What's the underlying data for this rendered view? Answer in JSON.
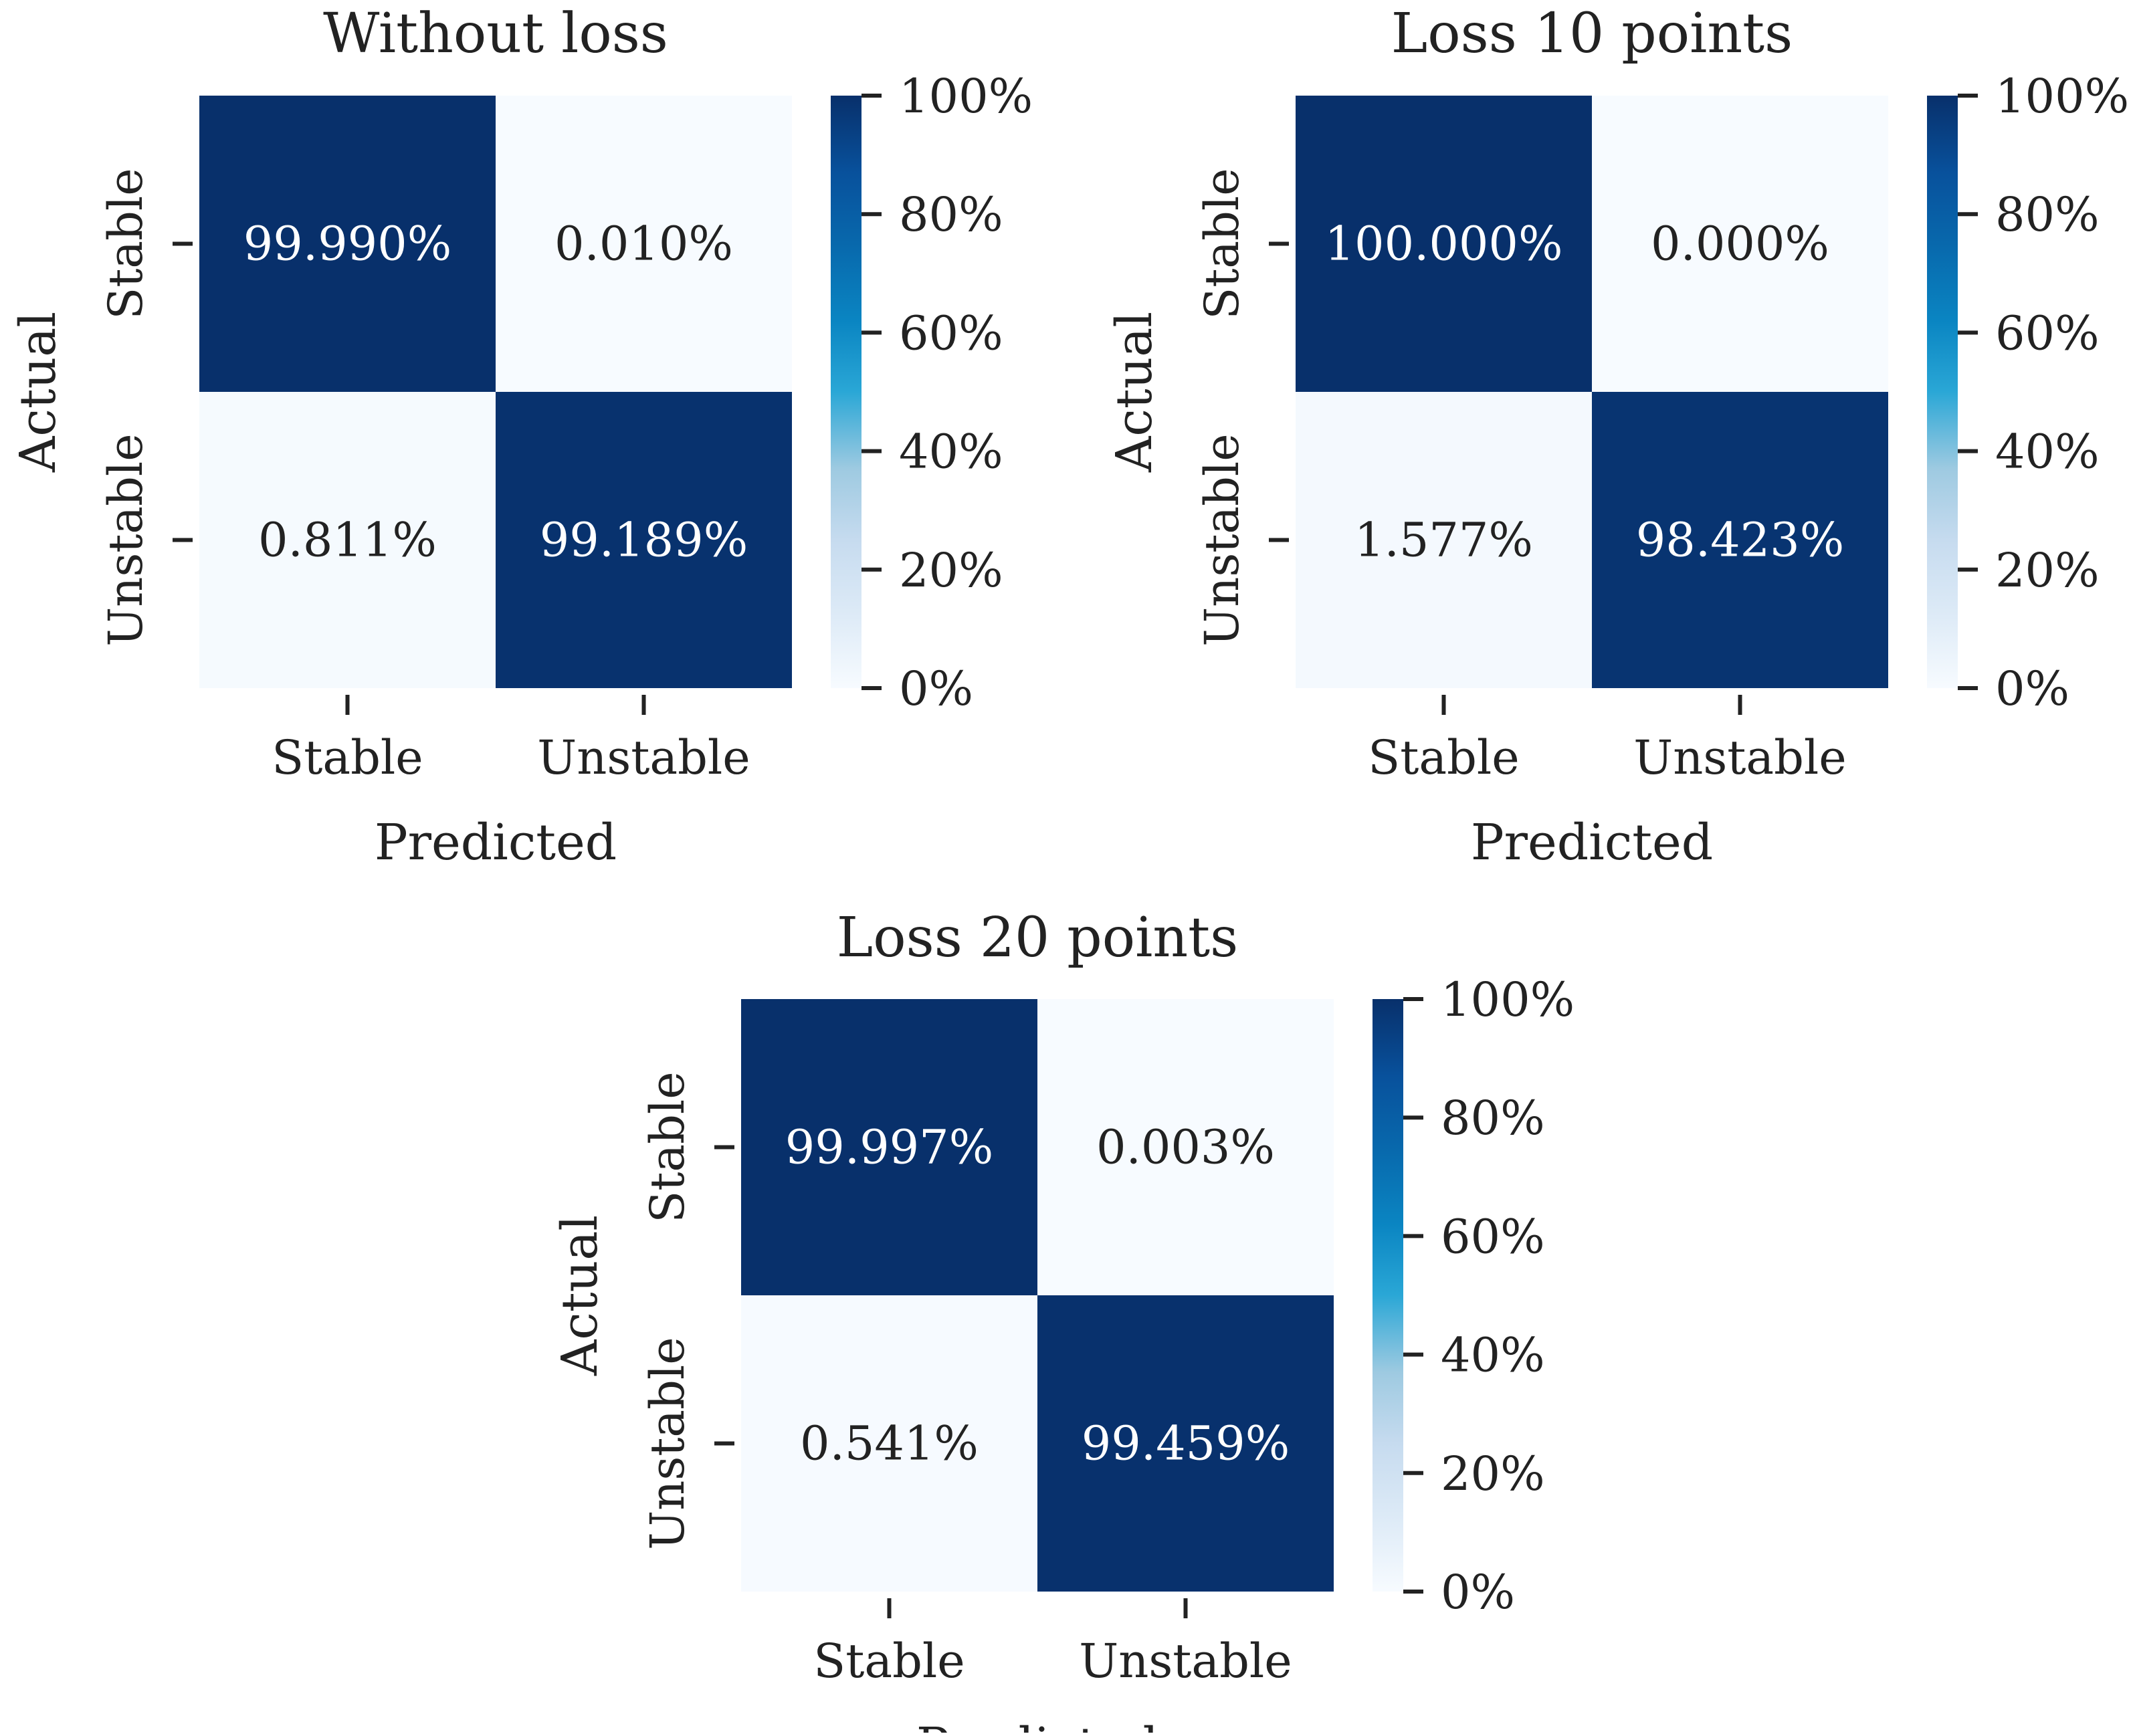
{
  "figure": {
    "description_type": "confusion matrices"
  },
  "chart_data": [
    {
      "type": "heatmap",
      "title": "Without loss",
      "xlabel": "Predicted",
      "ylabel": "Actual",
      "x_categories": [
        "Stable",
        "Unstable"
      ],
      "y_categories": [
        "Stable",
        "Unstable"
      ],
      "values": [
        [
          99.99,
          0.01
        ],
        [
          0.811,
          99.189
        ]
      ],
      "cell_labels": [
        [
          "99.990%",
          "0.010%"
        ],
        [
          "0.811%",
          "99.189%"
        ]
      ],
      "colorbar": {
        "range": [
          0,
          100
        ],
        "ticks": [
          0,
          20,
          40,
          60,
          80,
          100
        ],
        "tick_labels": [
          "0%",
          "20%",
          "40%",
          "60%",
          "80%",
          "100%"
        ],
        "colormap": "Blues"
      }
    },
    {
      "type": "heatmap",
      "title": "Loss 10 points",
      "xlabel": "Predicted",
      "ylabel": "Actual",
      "x_categories": [
        "Stable",
        "Unstable"
      ],
      "y_categories": [
        "Stable",
        "Unstable"
      ],
      "values": [
        [
          100.0,
          0.0
        ],
        [
          1.577,
          98.423
        ]
      ],
      "cell_labels": [
        [
          "100.000%",
          "0.000%"
        ],
        [
          "1.577%",
          "98.423%"
        ]
      ],
      "colorbar": {
        "range": [
          0,
          100
        ],
        "ticks": [
          0,
          20,
          40,
          60,
          80,
          100
        ],
        "tick_labels": [
          "0%",
          "20%",
          "40%",
          "60%",
          "80%",
          "100%"
        ],
        "colormap": "Blues"
      }
    },
    {
      "type": "heatmap",
      "title": "Loss 20 points",
      "xlabel": "Predicted",
      "ylabel": "Actual",
      "x_categories": [
        "Stable",
        "Unstable"
      ],
      "y_categories": [
        "Stable",
        "Unstable"
      ],
      "values": [
        [
          99.997,
          0.003
        ],
        [
          0.541,
          99.459
        ]
      ],
      "cell_labels": [
        [
          "99.997%",
          "0.003%"
        ],
        [
          "0.541%",
          "99.459%"
        ]
      ],
      "colorbar": {
        "range": [
          0,
          100
        ],
        "ticks": [
          0,
          20,
          40,
          60,
          80,
          100
        ],
        "tick_labels": [
          "0%",
          "20%",
          "40%",
          "60%",
          "80%",
          "100%"
        ],
        "colormap": "Blues"
      }
    }
  ],
  "colors": {
    "high": "#08306b",
    "low": "#f7fbff",
    "text_dark_bg": "#ffffff",
    "text_light_bg": "#222222"
  }
}
